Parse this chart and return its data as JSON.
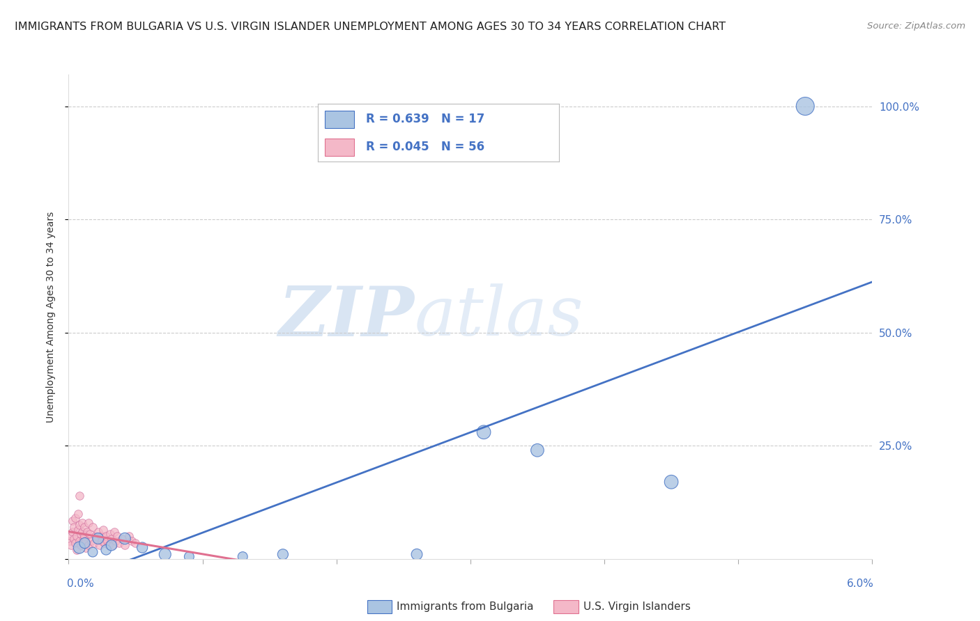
{
  "title": "IMMIGRANTS FROM BULGARIA VS U.S. VIRGIN ISLANDER UNEMPLOYMENT AMONG AGES 30 TO 34 YEARS CORRELATION CHART",
  "source": "Source: ZipAtlas.com",
  "ylabel": "Unemployment Among Ages 30 to 34 years",
  "xlim": [
    0.0,
    6.0
  ],
  "ylim": [
    0.0,
    107.0
  ],
  "yticks": [
    0,
    25,
    50,
    75,
    100
  ],
  "ytick_labels": [
    "",
    "25.0%",
    "50.0%",
    "75.0%",
    "100.0%"
  ],
  "blue_R": 0.639,
  "blue_N": 17,
  "pink_R": 0.045,
  "pink_N": 56,
  "blue_label": "Immigrants from Bulgaria",
  "pink_label": "U.S. Virgin Islanders",
  "blue_color": "#aac4e2",
  "blue_line_color": "#4472c4",
  "pink_color": "#f4b8c8",
  "pink_line_color": "#e07090",
  "watermark_zip": "ZIP",
  "watermark_atlas": "atlas",
  "background_color": "#ffffff",
  "blue_dots": [
    [
      0.08,
      2.5
    ],
    [
      0.12,
      3.5
    ],
    [
      0.18,
      1.5
    ],
    [
      0.22,
      4.5
    ],
    [
      0.28,
      2.0
    ],
    [
      0.32,
      3.0
    ],
    [
      0.42,
      4.5
    ],
    [
      0.55,
      2.5
    ],
    [
      0.72,
      1.0
    ],
    [
      0.9,
      0.5
    ],
    [
      1.3,
      0.5
    ],
    [
      1.6,
      1.0
    ],
    [
      2.6,
      1.0
    ],
    [
      3.1,
      28.0
    ],
    [
      3.5,
      24.0
    ],
    [
      4.5,
      17.0
    ],
    [
      5.5,
      100.0
    ]
  ],
  "pink_dots": [
    [
      0.01,
      4.0
    ],
    [
      0.02,
      5.0
    ],
    [
      0.02,
      3.0
    ],
    [
      0.03,
      6.0
    ],
    [
      0.03,
      8.5
    ],
    [
      0.04,
      4.5
    ],
    [
      0.04,
      7.0
    ],
    [
      0.05,
      3.5
    ],
    [
      0.05,
      9.0
    ],
    [
      0.06,
      5.0
    ],
    [
      0.06,
      2.0
    ],
    [
      0.07,
      6.5
    ],
    [
      0.07,
      10.0
    ],
    [
      0.08,
      4.0
    ],
    [
      0.08,
      7.5
    ],
    [
      0.09,
      3.0
    ],
    [
      0.09,
      5.5
    ],
    [
      0.1,
      6.0
    ],
    [
      0.1,
      8.0
    ],
    [
      0.11,
      4.5
    ],
    [
      0.11,
      3.5
    ],
    [
      0.12,
      5.0
    ],
    [
      0.12,
      7.0
    ],
    [
      0.13,
      4.0
    ],
    [
      0.13,
      2.5
    ],
    [
      0.14,
      6.0
    ],
    [
      0.15,
      3.0
    ],
    [
      0.15,
      8.0
    ],
    [
      0.16,
      5.5
    ],
    [
      0.17,
      4.0
    ],
    [
      0.18,
      7.0
    ],
    [
      0.19,
      3.5
    ],
    [
      0.2,
      5.0
    ],
    [
      0.21,
      4.5
    ],
    [
      0.22,
      6.0
    ],
    [
      0.23,
      3.0
    ],
    [
      0.24,
      5.0
    ],
    [
      0.25,
      4.0
    ],
    [
      0.26,
      6.5
    ],
    [
      0.27,
      3.5
    ],
    [
      0.28,
      5.0
    ],
    [
      0.29,
      4.0
    ],
    [
      0.3,
      3.0
    ],
    [
      0.31,
      5.5
    ],
    [
      0.32,
      4.5
    ],
    [
      0.33,
      3.0
    ],
    [
      0.34,
      6.0
    ],
    [
      0.35,
      4.0
    ],
    [
      0.36,
      5.0
    ],
    [
      0.38,
      3.5
    ],
    [
      0.4,
      4.5
    ],
    [
      0.42,
      3.0
    ],
    [
      0.45,
      5.0
    ],
    [
      0.47,
      4.0
    ],
    [
      0.5,
      3.5
    ],
    [
      0.08,
      14.0
    ]
  ],
  "blue_dot_sizes": [
    150,
    120,
    100,
    130,
    110,
    120,
    140,
    120,
    150,
    100,
    100,
    120,
    130,
    200,
    180,
    200,
    350
  ],
  "title_fontsize": 11.5,
  "source_fontsize": 9.5,
  "ylabel_fontsize": 10,
  "legend_fontsize": 12,
  "tick_fontsize": 11
}
